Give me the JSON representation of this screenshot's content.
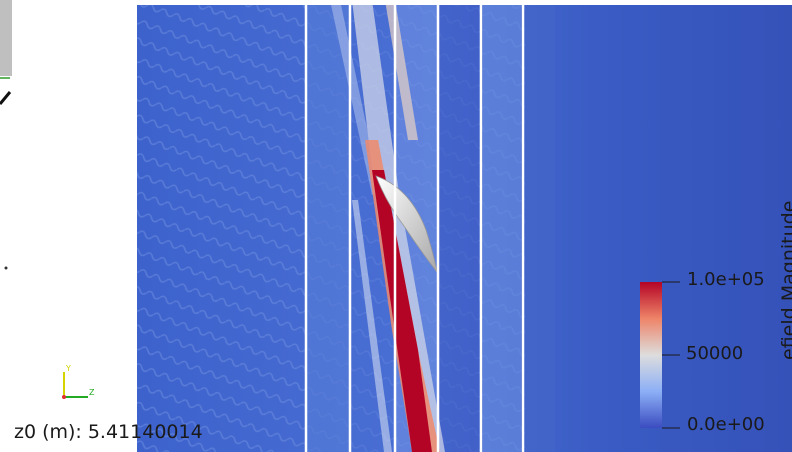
{
  "readout": {
    "label": "z0 (m):",
    "value": "5.41140014"
  },
  "colorbar": {
    "title": "efield Magnitude",
    "ticks": [
      "1.0e+05",
      "50000",
      "0.0e+00"
    ],
    "range": [
      0,
      100000
    ],
    "colors": {
      "max": "#b40426",
      "mid": "#dddddd",
      "min": "#3b4cc0"
    }
  },
  "orientation_axes": {
    "y_label": "Y",
    "z_label": "Z",
    "colors": {
      "x": "#e03030",
      "y": "#d4d400",
      "z": "#22aa22"
    }
  },
  "colors": {
    "field_background": "#3a5fc8",
    "lens": "#d8d8d8",
    "background": "#ffffff"
  }
}
